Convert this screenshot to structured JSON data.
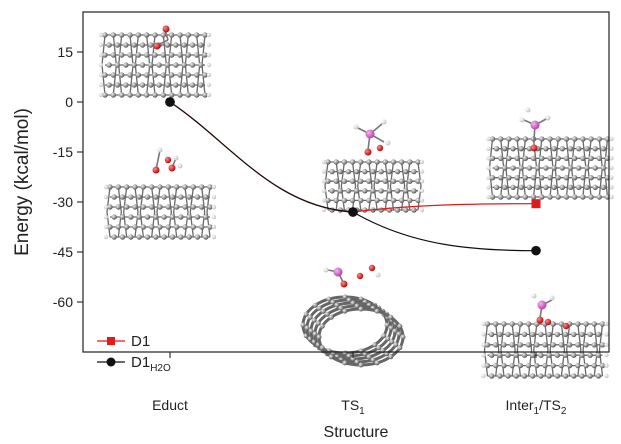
{
  "chart_data": {
    "type": "line",
    "xlabel": "Structure",
    "ylabel": "Energy (kcal/mol)",
    "categories": [
      {
        "base": "Educt",
        "sub1": "",
        "mid": "",
        "sub2": ""
      },
      {
        "base": "TS",
        "sub1": "1",
        "mid": "",
        "sub2": ""
      },
      {
        "base": "Inter",
        "sub1": "1",
        "mid": "/TS",
        "sub2": "2"
      }
    ],
    "ylim": [
      -75,
      27
    ],
    "yticks": [
      15,
      0,
      -15,
      -30,
      -45,
      -60
    ],
    "series": [
      {
        "name": "D1",
        "name_sub": "",
        "color": "#e11a1a",
        "marker": "square",
        "values": [
          0,
          -33.0,
          -30.5
        ]
      },
      {
        "name": "D1",
        "name_sub": "H2O",
        "color": "#111111",
        "marker": "circle",
        "values": [
          0,
          -33.0,
          -44.6
        ]
      }
    ],
    "legend_position": "bottom-left",
    "grid": false,
    "insets": [
      "nanotube-model-educt-d1",
      "nanotube-model-educt-h2o",
      "nanotube-model-ts1-d1",
      "nanotube-model-ts1-h2o",
      "nanotube-model-inter-d1",
      "nanotube-model-inter-h2o"
    ]
  }
}
